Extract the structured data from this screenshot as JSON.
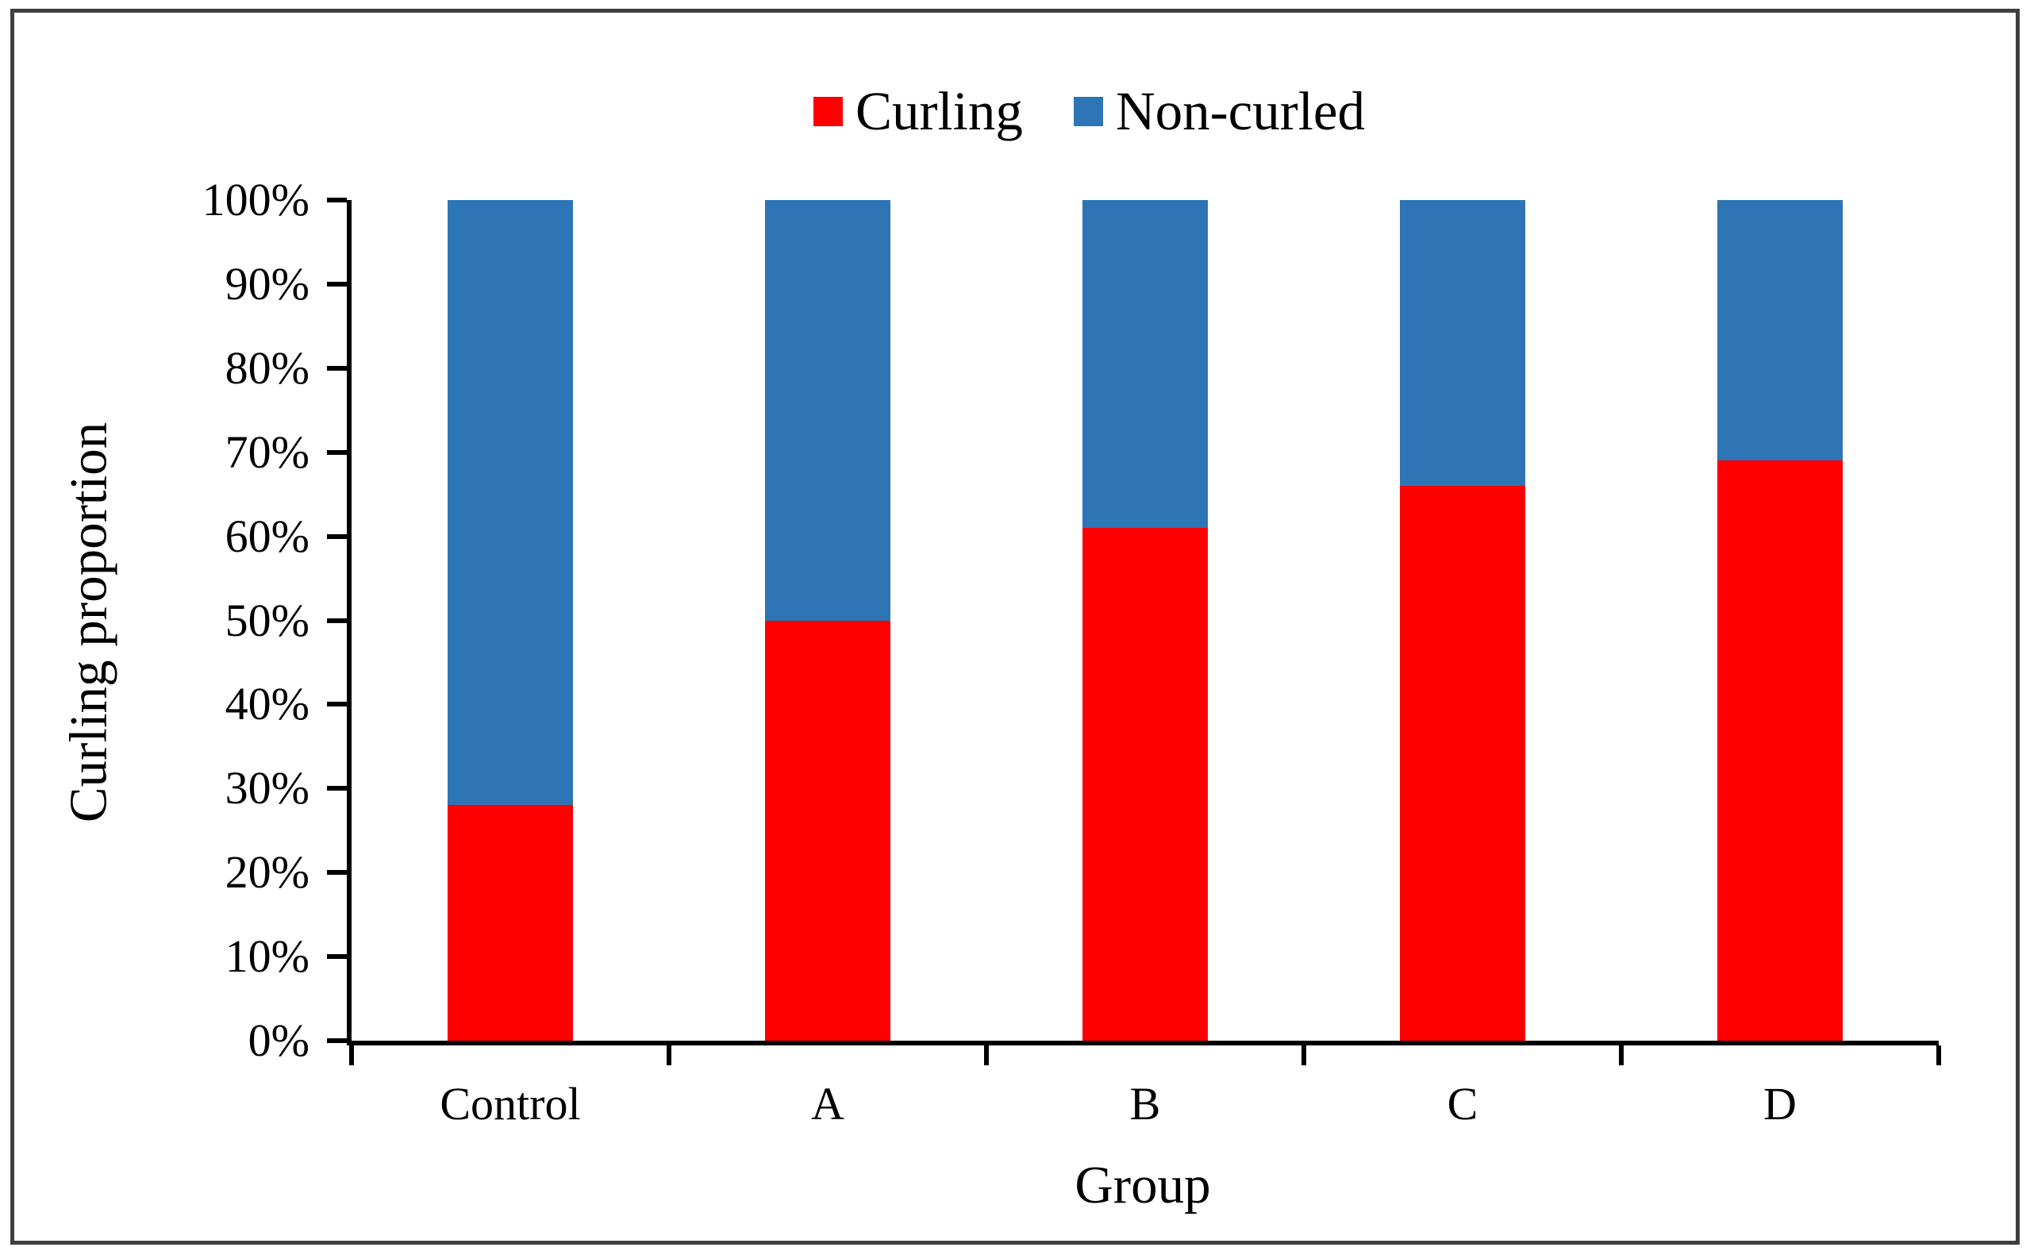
{
  "legend": {
    "items": [
      {
        "label": "Curling",
        "color": "#FF0000"
      },
      {
        "label": "Non-curled",
        "color": "#2E75B6"
      }
    ]
  },
  "axes": {
    "y_title": "Curling proportion",
    "x_title": "Group"
  },
  "chart_data": {
    "type": "bar",
    "stacked": true,
    "title": "",
    "xlabel": "Group",
    "ylabel": "Curling proportion",
    "categories": [
      "Control",
      "A",
      "B",
      "C",
      "D"
    ],
    "series": [
      {
        "name": "Curling",
        "color": "#FF0000",
        "values": [
          28,
          50,
          61,
          66,
          69
        ]
      },
      {
        "name": "Non-curled",
        "color": "#2E75B6",
        "values": [
          72,
          50,
          39,
          34,
          31
        ]
      }
    ],
    "ylim": [
      0,
      100
    ],
    "y_ticks": [
      "0%",
      "10%",
      "20%",
      "30%",
      "40%",
      "50%",
      "60%",
      "70%",
      "80%",
      "90%",
      "100%"
    ],
    "y_tick_step_percent": 10,
    "grid": false,
    "legend_position": "top-center",
    "axis_color": "#000000",
    "frame_color": "#3F3F3F",
    "background": "#FFFFFF"
  }
}
